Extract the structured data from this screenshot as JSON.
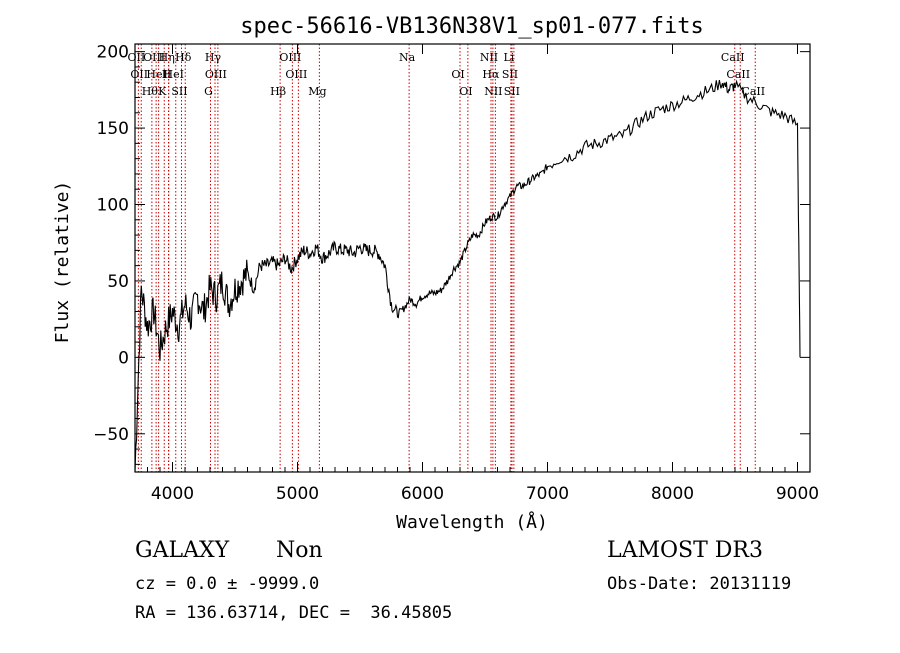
{
  "chart_data": {
    "type": "line",
    "title": "spec-56616-VB136N38V1_sp01-077.fits",
    "xlabel": "Wavelength (Å)",
    "ylabel": "Flux (relative)",
    "xlim": [
      3700,
      9100
    ],
    "ylim": [
      -75,
      205
    ],
    "x_ticks": [
      4000,
      5000,
      6000,
      7000,
      8000,
      9000
    ],
    "x_tick_labels": [
      "4000",
      "5000",
      "6000",
      "7000",
      "8000",
      "9000"
    ],
    "y_ticks": [
      -50,
      0,
      50,
      100,
      150,
      200
    ],
    "y_tick_labels": [
      "−50",
      "0",
      "50",
      "100",
      "150",
      "200"
    ],
    "grid": false,
    "series": [
      {
        "name": "spectrum",
        "x": [
          3700,
          3750,
          3800,
          3850,
          3900,
          3950,
          4000,
          4050,
          4100,
          4150,
          4200,
          4250,
          4300,
          4350,
          4400,
          4450,
          4500,
          4550,
          4600,
          4650,
          4700,
          4750,
          4800,
          4850,
          4900,
          4950,
          5000,
          5050,
          5100,
          5150,
          5200,
          5250,
          5300,
          5350,
          5400,
          5450,
          5500,
          5550,
          5600,
          5650,
          5700,
          5750,
          5800,
          5850,
          5900,
          5950,
          6000,
          6050,
          6100,
          6150,
          6200,
          6250,
          6300,
          6350,
          6400,
          6450,
          6500,
          6550,
          6600,
          6650,
          6700,
          6750,
          6800,
          6850,
          6900,
          6950,
          7000,
          7100,
          7200,
          7300,
          7400,
          7500,
          7600,
          7700,
          7800,
          7900,
          8000,
          8100,
          8200,
          8300,
          8400,
          8450,
          8500,
          8600,
          8700,
          8800,
          8900,
          9000,
          9020
        ],
        "values": [
          -75,
          45,
          20,
          30,
          5,
          20,
          30,
          20,
          35,
          25,
          40,
          30,
          45,
          40,
          50,
          35,
          45,
          50,
          55,
          45,
          60,
          60,
          62,
          60,
          65,
          58,
          65,
          70,
          68,
          72,
          65,
          68,
          72,
          70,
          70,
          68,
          72,
          70,
          70,
          68,
          60,
          35,
          28,
          32,
          38,
          35,
          40,
          42,
          42,
          44,
          50,
          58,
          62,
          72,
          80,
          80,
          88,
          92,
          92,
          100,
          105,
          112,
          112,
          115,
          118,
          120,
          125,
          130,
          132,
          138,
          140,
          143,
          145,
          152,
          158,
          162,
          165,
          168,
          172,
          175,
          180,
          175,
          178,
          170,
          165,
          160,
          158,
          152,
          0
        ]
      }
    ],
    "line_markers": [
      {
        "wavelength": 3727,
        "label": "OII"
      },
      {
        "wavelength": 3750,
        "label": "OII"
      },
      {
        "wavelength": 3835,
        "label": "Hθ"
      },
      {
        "wavelength": 3869,
        "label": "OIII"
      },
      {
        "wavelength": 3889,
        "label": "HeI"
      },
      {
        "wavelength": 3934,
        "label": "K"
      },
      {
        "wavelength": 3970,
        "label": "Hη"
      },
      {
        "wavelength": 4026,
        "label": "HeI"
      },
      {
        "wavelength": 4072,
        "label": "SII"
      },
      {
        "wavelength": 4102,
        "label": "Hδ"
      },
      {
        "wavelength": 3968,
        "label": "H"
      },
      {
        "wavelength": 4304,
        "label": "G"
      },
      {
        "wavelength": 4340,
        "label": "Hγ"
      },
      {
        "wavelength": 4363,
        "label": "OIII"
      },
      {
        "wavelength": 4861,
        "label": "Hβ"
      },
      {
        "wavelength": 4959,
        "label": "OIII"
      },
      {
        "wavelength": 5007,
        "label": "OIII"
      },
      {
        "wavelength": 5175,
        "label": "Mg"
      },
      {
        "wavelength": 5893,
        "label": "Na"
      },
      {
        "wavelength": 6300,
        "label": "OI"
      },
      {
        "wavelength": 6363,
        "label": "OI"
      },
      {
        "wavelength": 6548,
        "label": "NII"
      },
      {
        "wavelength": 6563,
        "label": "Hα"
      },
      {
        "wavelength": 6583,
        "label": "NII"
      },
      {
        "wavelength": 6707,
        "label": "Li"
      },
      {
        "wavelength": 6716,
        "label": "SII"
      },
      {
        "wavelength": 6731,
        "label": "SII"
      },
      {
        "wavelength": 8498,
        "label": "CaII"
      },
      {
        "wavelength": 8542,
        "label": "CaII"
      },
      {
        "wavelength": 8662,
        "label": "CaII"
      }
    ]
  },
  "info": {
    "object_class": "GALAXY",
    "subclass": "Non",
    "redshift_line": "cz = 0.0 ± -9999.0",
    "coords_line": "RA = 136.63714, DEC =  36.45805",
    "survey": "LAMOST DR3",
    "obs_date_line": "Obs-Date: 20131119"
  },
  "colors": {
    "axis": "#000000",
    "spectrum": "#000000",
    "marker_line": "#cc0000",
    "background": "#ffffff"
  }
}
